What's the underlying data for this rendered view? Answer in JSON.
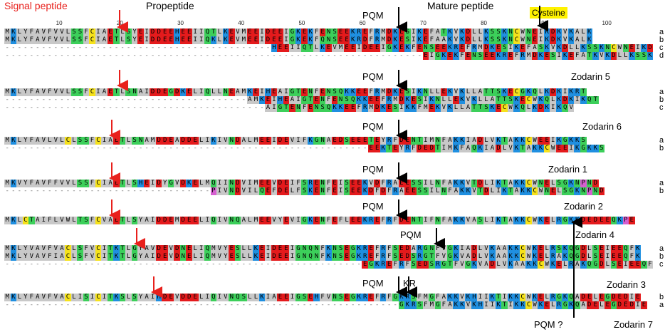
{
  "headers": {
    "signal_peptide": "Signal peptide",
    "propeptide": "Propeptide",
    "mature_peptide": "Mature peptide",
    "cysteine": "Cysteine",
    "pqm_top": "PQM"
  },
  "ruler": [
    "10",
    "20",
    "30",
    "40",
    "50",
    "60",
    "70",
    "80",
    "90",
    "100"
  ],
  "colors": {
    "hydrophobic": "#c8c8c8",
    "acidic": "#e41a1c",
    "basic": "#1f8fe0",
    "polar": "#3ccf5a",
    "cys": "#f6e21b",
    "small": "#d55fd0",
    "gap": "#ffffff"
  },
  "blocks": [
    {
      "id": "block-1",
      "label": "",
      "pqm": "PQM",
      "rows": [
        {
          "tag": "a",
          "seq": "MKLYFAVFVVLSSFCIAETLSYEIDDEEHEEIIQTLKEVMEEIDEEIGKEKFENSEEKREFRMDKESIKEFATKVKDLLKSSKNCWNEIKDKVKALK"
        },
        {
          "tag": "b",
          "seq": "MKLYFAVFVVLSSFCIAETLSYEIDDEEHEEIIQKLKEVMEEIDEEIGKEKFQNSEEKRDFRMDKESIKEFAAKVKDLLKSSKNCWNEIKDKVKALK"
        },
        {
          "tag": "c",
          "seq": "--------------------------------------------HEEIIQTLKEVMEEIDEEIGKEKFENSEEKREFRMDKESIKEFASKVKDLLKSSKNCWNEIKDKVKALK"
        },
        {
          "tag": "d",
          "seq": "---------------------------------------------------------------------EIGKEKFENSEEKREFRMDKESIKEFATKVKDLLKSSKNCWNEIKDKVKALK"
        }
      ]
    },
    {
      "id": "block-2",
      "label": "Zodarin 5",
      "pqm": "PQM",
      "rows": [
        {
          "tag": "a",
          "seq": "MKLYFAVFVVLSSFCIAETLSNAIDDEGDKELIQLLNEAMKEIHEAIGTENFENSQKKEEFRMDKESIKNLLEKVKLLATTSKECGKQLKDKIKRT"
        },
        {
          "tag": "b",
          "seq": "----------------------------------------AMKEIHEAIGTENFENSQKKEEFRMDKESIKNLLEKVKLLATTSKECWKQLKDKIKQT"
        },
        {
          "tag": "c",
          "seq": "-------------------------------------------AIGTENFENSQKKEEFRMDKESIKKFMEKVKLLATTSKECWKQLKDKIKQV"
        }
      ]
    },
    {
      "id": "block-3",
      "label": "Zodarin 6",
      "pqm": "PQM",
      "rows": [
        {
          "tag": "a",
          "seq": "MKLYFAVLVLCLSSFCIAETLSNAMDDEADDELIKIVNDALMEEIDEVIFKGNAEDSEEETEYRFDENTIMNFAKKIADLVKTAKKCWEEIKGKKS"
        },
        {
          "tag": "b",
          "seq": "------------------------------------------------------------EEKTEYRFDEDTIMKFAQKIADLVKTAKKCWEEIKGKKS"
        }
      ]
    },
    {
      "id": "block-4",
      "label": "Zodarin 1",
      "pqm": "PQM",
      "rows": [
        {
          "tag": "a",
          "seq": "MKVYFAVFFVVLSSFCIAETLSHEIDYGVDKELMQIINDVIMEEVDEIFSRENFEISEEKVDFRAEESSILNFAKKVTDLIKTAKKCWNELSGKNPND"
        },
        {
          "tag": "b",
          "seq": "----------------------------------PIVNDVILQEFDELFSKENFEISEEKDFDFRAEESSILNFAKKVTDLIKTAKKCWNELSGKNPND"
        }
      ]
    },
    {
      "id": "block-5",
      "label": "Zodarin 2",
      "pqm": "PQM",
      "rows": [
        {
          "tag": "",
          "seq": "MKLCTAIFLVWLTSFCVAETLSYAIDDEMDEELIQIVNQALMEEVYEVIGKENFEFLEEKREFRFDENTIFNFAKKVASLIKTAKKCWKELRGKKDEDEEQKPE"
        }
      ]
    },
    {
      "id": "block-6",
      "label": "Zodarin 4",
      "pqm": "PQM",
      "rows": [
        {
          "tag": "a",
          "seq": "MKLYVAVFVACLSFVCITKTLGYAVDEVDNELIQMVYESLLKEIDEEIGNQNFKNSEGKREFRFSEDARGNFVGKIADLVKAAKKCWKELRSKQGDLSEIEEQFK"
        },
        {
          "tag": "b",
          "seq": "MKLYVAVFIACLSFVCITKTLGYAIDEVDNELIQMVYESLLKEIDEEIGNQNFKNSEGKREFRFSEDSRGTFVGKVADLVKAAKKCWKELRAKQGDLSEIEEQFK"
        },
        {
          "tag": "c",
          "seq": "-----------------------------------------------------------EGKREFRFSEDSRGTFVGKVADLVKAAKKCWKELRAKQGDLSEIEEQFK"
        }
      ]
    },
    {
      "id": "block-7",
      "label": "Zodarin 3",
      "pqm": "PQM",
      "kr": "KR",
      "rows": [
        {
          "tag": "b",
          "seq": "MKLYFAVFVACLISICITKSLSYAIHDEVDDELIQIVNQSLLKIAEEIGSEHFVNSEGKREFRFGKRSFMGFAKKVKHIIKTIKKCWKELRGKQADELEGDEDIE"
        },
        {
          "tag": "a",
          "seq": "-----------------------------------------------------------------GKRSFMGFAKKVKHIIKTIKKCWKELRGKQADELEGDEDIE"
        }
      ]
    }
  ],
  "bottom_labels": {
    "pqm_question": "PQM ?",
    "zodarin7": "Zodarin 7"
  }
}
